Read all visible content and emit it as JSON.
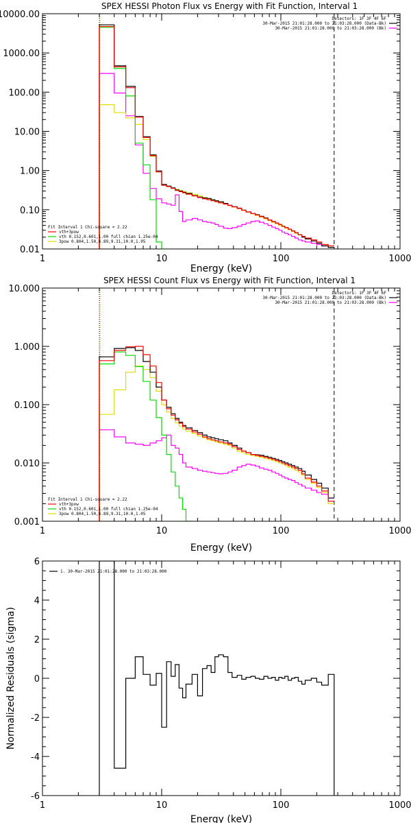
{
  "colors": {
    "data": "#000000",
    "background": "#ff00ff",
    "total": "#ff0000",
    "thermal": "#00dd00",
    "powerlaw": "#dddd00",
    "orange": "#ff8800"
  },
  "chart_data": [
    {
      "type": "line",
      "title": "SPEX HESSI Photon Flux vs Energy with Fit Function, Interval 1",
      "xlabel": "Energy (keV)",
      "ylabel": "",
      "xscale": "log",
      "yscale": "log",
      "xlim": [
        1,
        1000
      ],
      "ylim": [
        0.01,
        10000
      ],
      "xticks": [
        1,
        10,
        100,
        1000
      ],
      "xtick_labels": [
        "1",
        "10",
        "100",
        "1000"
      ],
      "yticks": [
        0.01,
        0.1,
        1,
        10,
        100,
        1000,
        10000
      ],
      "ytick_labels": [
        "0.01",
        "0.10",
        "1.00",
        "10.00",
        "100.00",
        "1000.00",
        "10000.00"
      ],
      "legend_top": {
        "position": "top-right",
        "lines": [
          {
            "text": "Detectors: 1F 3F 4F 6F",
            "color": "#000000"
          },
          {
            "text": "30-Mar-2015 21:01:28.000 to 21:03:28.000 (Data-Bk)",
            "color": "#000000"
          },
          {
            "text": "30-Mar-2015 21:01:28.000 to 21:03:28.000 (Bk)",
            "color": "#ff00ff"
          }
        ]
      },
      "legend_bottom": {
        "position": "bottom-left",
        "lines": [
          {
            "text": "Fit Interval 1   Chi-square = 2.22",
            "color": "#000000"
          },
          {
            "text": "vth+3pow",
            "color": "#ff0000"
          },
          {
            "text": "vth 0.152,0.601,1.00  full chian 1.25e-04",
            "color": "#00dd00"
          },
          {
            "text": "3pow 0.804,1.50,6.89,9.31,10.0,1.05",
            "color": "#dddd00"
          }
        ]
      },
      "vlines": [
        {
          "x": 3.0,
          "style": "dotted",
          "color": "#000000"
        },
        {
          "x": 3.0,
          "style": "dotted",
          "color": "#ff8800"
        },
        {
          "x": 280,
          "style": "dashed",
          "color": "#000000"
        }
      ],
      "edges": [
        3.0,
        4.0,
        5.0,
        6.0,
        7.0,
        8.0,
        9.0,
        10.0,
        11.0,
        12.0,
        13.0,
        14.0,
        15.0,
        16.0,
        18.0,
        20.0,
        22.0,
        24.0,
        26.0,
        28.0,
        30.0,
        33.0,
        36.0,
        39.0,
        43.0,
        47.0,
        51.0,
        56.0,
        61.0,
        66.0,
        72.0,
        78.0,
        84.0,
        90.0,
        96.0,
        102.0,
        108.0,
        115.0,
        123.0,
        131.0,
        140.0,
        150.0,
        160.0,
        180.0,
        200.0,
        220.0,
        250.0,
        280.0
      ],
      "series": [
        {
          "key": "data",
          "color": "#000000",
          "values": [
            5200,
            470,
            140,
            24,
            7.3,
            2.5,
            0.98,
            0.44,
            0.4,
            0.36,
            0.32,
            0.3,
            0.28,
            0.26,
            0.23,
            0.21,
            0.2,
            0.195,
            0.18,
            0.17,
            0.16,
            0.145,
            0.13,
            0.12,
            0.11,
            0.098,
            0.088,
            0.08,
            0.075,
            0.068,
            0.062,
            0.055,
            0.05,
            0.046,
            0.042,
            0.038,
            0.035,
            0.032,
            0.029,
            0.026,
            0.023,
            0.02,
            0.018,
            0.016,
            0.014,
            0.012,
            0.011
          ]
        },
        {
          "key": "total",
          "color": "#ff0000",
          "values": [
            4700,
            440,
            130,
            23,
            7.0,
            2.4,
            0.92,
            0.42,
            0.39,
            0.35,
            0.31,
            0.29,
            0.27,
            0.25,
            0.225,
            0.205,
            0.19,
            0.18,
            0.17,
            0.16,
            0.15,
            0.14,
            0.128,
            0.118,
            0.108,
            0.097,
            0.088,
            0.08,
            0.074,
            0.067,
            0.061,
            0.055,
            0.05,
            0.046,
            0.042,
            0.038,
            0.035,
            0.032,
            0.029,
            0.026,
            0.023,
            0.021,
            0.019,
            0.017,
            0.015,
            0.013,
            0.012
          ]
        },
        {
          "key": "thermal",
          "color": "#00dd00",
          "values": [
            4500,
            400,
            80,
            5.0,
            1.4,
            0.18,
            0.015,
            0.0015
          ]
        },
        {
          "key": "powerlaw",
          "color": "#dddd00",
          "values": [
            48,
            30,
            22,
            15,
            6.2,
            2.3,
            0.92,
            0.43,
            0.4,
            0.36,
            0.33,
            0.31,
            0.29,
            0.27,
            0.245,
            0.225,
            0.205,
            0.19,
            0.175,
            0.165,
            0.155,
            0.14,
            0.128,
            0.118,
            0.107,
            0.097,
            0.088,
            0.079,
            0.072,
            0.065,
            0.059,
            0.053,
            0.048,
            0.044,
            0.04,
            0.037,
            0.034,
            0.031,
            0.028,
            0.025,
            0.023,
            0.021,
            0.019,
            0.017,
            0.015,
            0.013,
            0.012
          ]
        },
        {
          "key": "background",
          "color": "#ff00ff",
          "values": [
            300,
            95,
            25,
            4.5,
            0.85,
            0.35,
            0.19,
            0.15,
            0.14,
            0.13,
            0.24,
            0.09,
            0.05,
            0.055,
            0.06,
            0.055,
            0.05,
            0.048,
            0.046,
            0.042,
            0.038,
            0.034,
            0.033,
            0.035,
            0.038,
            0.042,
            0.046,
            0.05,
            0.052,
            0.048,
            0.044,
            0.04,
            0.036,
            0.033,
            0.03,
            0.027,
            0.025,
            0.023,
            0.021,
            0.019,
            0.017,
            0.016,
            0.015,
            0.014,
            0.013,
            0.012,
            0.011
          ]
        }
      ]
    },
    {
      "type": "line",
      "title": "SPEX HESSI Count Flux vs Energy with Fit Function, Interval 1",
      "xlabel": "Energy (keV)",
      "ylabel": "",
      "xscale": "log",
      "yscale": "log",
      "xlim": [
        1,
        1000
      ],
      "ylim": [
        0.001,
        10
      ],
      "xticks": [
        1,
        10,
        100,
        1000
      ],
      "xtick_labels": [
        "1",
        "10",
        "100",
        "1000"
      ],
      "yticks": [
        0.001,
        0.01,
        0.1,
        1,
        10
      ],
      "ytick_labels": [
        "0.001",
        "0.010",
        "0.100",
        "1.000",
        "10.000"
      ],
      "legend_top": {
        "position": "top-right",
        "lines": [
          {
            "text": "Detectors: 1F 3F 4F 6F",
            "color": "#000000"
          },
          {
            "text": "30-Mar-2015 21:01:28.000 to 21:03:28.000 (Data-Bk)",
            "color": "#000000"
          },
          {
            "text": "30-Mar-2015 21:01:28.000 to 21:03:28.000 (Bk)",
            "color": "#ff00ff"
          }
        ]
      },
      "legend_bottom": {
        "position": "bottom-left",
        "lines": [
          {
            "text": "Fit Interval 1   Chi-square = 2.22",
            "color": "#000000"
          },
          {
            "text": "vth+3pow",
            "color": "#ff0000"
          },
          {
            "text": "vth 0.152,0.601,1.00  full chian 1.25e-04",
            "color": "#00dd00"
          },
          {
            "text": "3pow 0.804,1.50,6.89,9.31,10.0,1.05",
            "color": "#dddd00"
          }
        ]
      },
      "vlines": [
        {
          "x": 3.0,
          "style": "dotted",
          "color": "#000000"
        },
        {
          "x": 3.0,
          "style": "dotted",
          "color": "#ff8800"
        },
        {
          "x": 280,
          "style": "dashed",
          "color": "#000000"
        }
      ],
      "edges": [
        3.0,
        4.0,
        5.0,
        6.0,
        7.0,
        8.0,
        9.0,
        10.0,
        11.0,
        12.0,
        13.0,
        14.0,
        15.0,
        16.0,
        18.0,
        20.0,
        22.0,
        24.0,
        26.0,
        28.0,
        30.0,
        33.0,
        36.0,
        39.0,
        43.0,
        47.0,
        51.0,
        56.0,
        61.0,
        66.0,
        72.0,
        78.0,
        84.0,
        90.0,
        96.0,
        102.0,
        108.0,
        115.0,
        123.0,
        131.0,
        140.0,
        150.0,
        160.0,
        180.0,
        200.0,
        220.0,
        250.0,
        280.0
      ],
      "series": [
        {
          "key": "data",
          "color": "#000000",
          "values": [
            0.66,
            0.92,
            0.95,
            0.85,
            0.55,
            0.36,
            0.2,
            0.12,
            0.09,
            0.07,
            0.058,
            0.05,
            0.044,
            0.04,
            0.036,
            0.033,
            0.03,
            0.028,
            0.027,
            0.026,
            0.025,
            0.024,
            0.022,
            0.02,
            0.018,
            0.016,
            0.015,
            0.014,
            0.0138,
            0.0135,
            0.013,
            0.0125,
            0.012,
            0.0115,
            0.011,
            0.0105,
            0.01,
            0.0095,
            0.009,
            0.0085,
            0.008,
            0.0072,
            0.0062,
            0.0052,
            0.0045,
            0.0037,
            0.0025
          ]
        },
        {
          "key": "total",
          "color": "#ff0000",
          "values": [
            0.57,
            0.85,
            0.98,
            1.0,
            0.72,
            0.46,
            0.24,
            0.12,
            0.085,
            0.066,
            0.055,
            0.048,
            0.042,
            0.038,
            0.034,
            0.031,
            0.028,
            0.026,
            0.025,
            0.024,
            0.023,
            0.022,
            0.021,
            0.019,
            0.017,
            0.016,
            0.015,
            0.014,
            0.0135,
            0.013,
            0.0125,
            0.012,
            0.0115,
            0.011,
            0.0105,
            0.01,
            0.0095,
            0.009,
            0.0085,
            0.008,
            0.0075,
            0.0065,
            0.0055,
            0.0047,
            0.004,
            0.0033,
            0.0022
          ]
        },
        {
          "key": "thermal",
          "color": "#00dd00",
          "values": [
            0.5,
            0.8,
            0.7,
            0.45,
            0.25,
            0.12,
            0.06,
            0.03,
            0.014,
            0.007,
            0.004,
            0.0025,
            0.0016,
            0.001
          ]
        },
        {
          "key": "powerlaw",
          "color": "#dddd00",
          "values": [
            0.068,
            0.18,
            0.36,
            0.46,
            0.4,
            0.29,
            0.17,
            0.1,
            0.075,
            0.058,
            0.049,
            0.043,
            0.038,
            0.035,
            0.032,
            0.029,
            0.027,
            0.025,
            0.024,
            0.023,
            0.022,
            0.021,
            0.02,
            0.018,
            0.016,
            0.015,
            0.014,
            0.0135,
            0.013,
            0.0125,
            0.012,
            0.0115,
            0.011,
            0.0105,
            0.01,
            0.0095,
            0.009,
            0.0085,
            0.008,
            0.0075,
            0.007,
            0.0062,
            0.0052,
            0.0045,
            0.0038,
            0.0031,
            0.002
          ]
        },
        {
          "key": "background",
          "color": "#ff00ff",
          "values": [
            0.037,
            0.028,
            0.022,
            0.021,
            0.02,
            0.022,
            0.024,
            0.027,
            0.03,
            0.02,
            0.018,
            0.014,
            0.01,
            0.0085,
            0.008,
            0.0075,
            0.0072,
            0.007,
            0.0068,
            0.0066,
            0.0065,
            0.0066,
            0.007,
            0.0075,
            0.0085,
            0.009,
            0.0095,
            0.0092,
            0.0088,
            0.0082,
            0.0078,
            0.0075,
            0.007,
            0.0066,
            0.0062,
            0.0058,
            0.0055,
            0.0052,
            0.005,
            0.0046,
            0.0043,
            0.004,
            0.0037,
            0.0034,
            0.0031,
            0.0029,
            0.0025
          ]
        }
      ]
    },
    {
      "type": "line",
      "title": "",
      "xlabel": "Energy (keV)",
      "ylabel": "Normalized Residuals (sigma)",
      "xscale": "log",
      "yscale": "linear",
      "xlim": [
        1,
        1000
      ],
      "ylim": [
        -6,
        6
      ],
      "xticks": [
        1,
        10,
        100,
        1000
      ],
      "xtick_labels": [
        "1",
        "10",
        "100",
        "1000"
      ],
      "yticks": [
        -6,
        -4,
        -2,
        0,
        2,
        4,
        6
      ],
      "ytick_labels": [
        "-6",
        "-4",
        "-2",
        "0",
        "2",
        "4",
        "6"
      ],
      "legend": {
        "position": "top-left",
        "text": "1. 30-Mar-2015 21:01:28.000 to 21:03:28.000",
        "color": "#000000"
      },
      "edges": [
        3.0,
        4.0,
        5.0,
        6.0,
        7.0,
        8.0,
        9.0,
        10.0,
        11.0,
        12.0,
        13.0,
        14.0,
        15.0,
        16.0,
        18.0,
        20.0,
        22.0,
        24.0,
        26.0,
        28.0,
        30.0,
        33.0,
        36.0,
        39.0,
        43.0,
        47.0,
        51.0,
        56.0,
        61.0,
        66.0,
        72.0,
        78.0,
        84.0,
        90.0,
        96.0,
        102.0,
        108.0,
        115.0,
        123.0,
        131.0,
        140.0,
        150.0,
        160.0,
        180.0,
        200.0,
        220.0,
        250.0,
        280.0
      ],
      "series": [
        {
          "key": "residuals",
          "color": "#000000",
          "values": [
            6.0,
            -4.6,
            0.0,
            1.1,
            0.2,
            -0.35,
            0.25,
            -2.5,
            0.85,
            0.1,
            0.7,
            -0.5,
            -1.0,
            -0.3,
            0.2,
            -0.9,
            0.5,
            0.65,
            0.3,
            1.1,
            1.2,
            1.1,
            0.3,
            0.05,
            0.15,
            -0.05,
            0.05,
            0.1,
            0.0,
            -0.05,
            0.1,
            0.0,
            0.05,
            -0.1,
            0.05,
            0.0,
            0.1,
            -0.1,
            0.0,
            0.05,
            -0.15,
            -0.3,
            -0.1,
            0.0,
            -0.2,
            -0.35,
            0.2
          ]
        }
      ]
    }
  ]
}
